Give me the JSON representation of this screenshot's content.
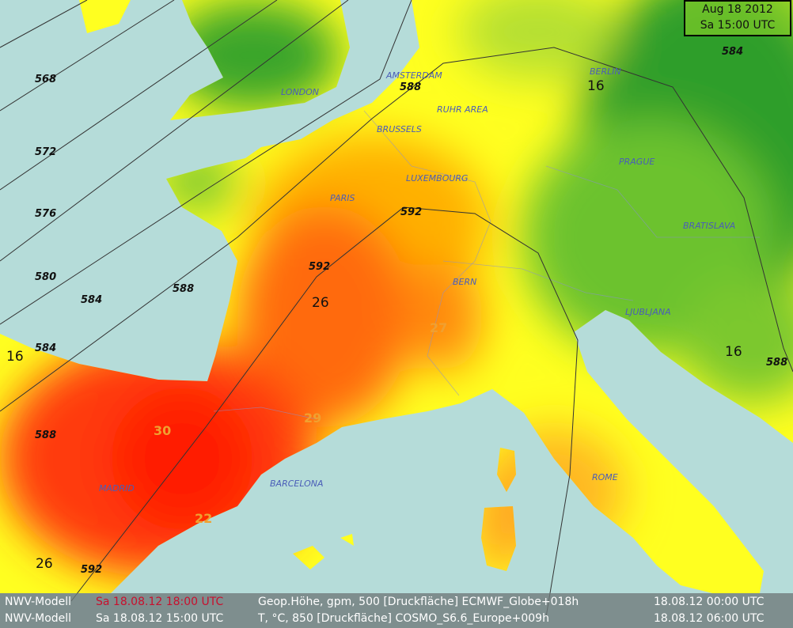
{
  "date_box": {
    "line1": "Aug 18 2012",
    "line2": "Sa 15:00 UTC"
  },
  "footer": {
    "rows": [
      {
        "model": "NWV-Modell",
        "valid": "Sa 18.08.12 18:00 UTC",
        "field": "Geop.Höhe, gpm, 500 [Druckfläche] ECMWF_Globe+018h",
        "run": "18.08.12 00:00 UTC",
        "valid_color": "#c8102e"
      },
      {
        "model": "NWV-Modell",
        "valid": "Sa 18.08.12 15:00 UTC",
        "field": "T, °C, 850 [Druckfläche] COSMO_S6.6_Europe+009h",
        "run": "18.08.12 06:00 UTC"
      }
    ]
  },
  "cities": [
    "LONDON",
    "AMSTERDAM",
    "BERLIN",
    "RUHR AREA",
    "BRUSSELS",
    "LUXEMBOURG",
    "PRAGUE",
    "PARIS",
    "BRATISLAVA",
    "BERN",
    "LJUBLJANA",
    "ROME",
    "MADRID",
    "BARCELONA"
  ],
  "isohypse_labels": [
    "568",
    "572",
    "576",
    "580",
    "584",
    "588",
    "584",
    "588",
    "592",
    "592",
    "588",
    "584",
    "588",
    "592",
    "592",
    "588"
  ],
  "temperature_labels": [
    "16",
    "16",
    "16",
    "26",
    "26",
    "27",
    "29",
    "30",
    "22"
  ],
  "colors": {
    "sea": "#b5dcd9",
    "cold": "#3aa52a",
    "mild": "#ffff00",
    "warm": "#ffa500",
    "hot": "#ff2a00"
  }
}
